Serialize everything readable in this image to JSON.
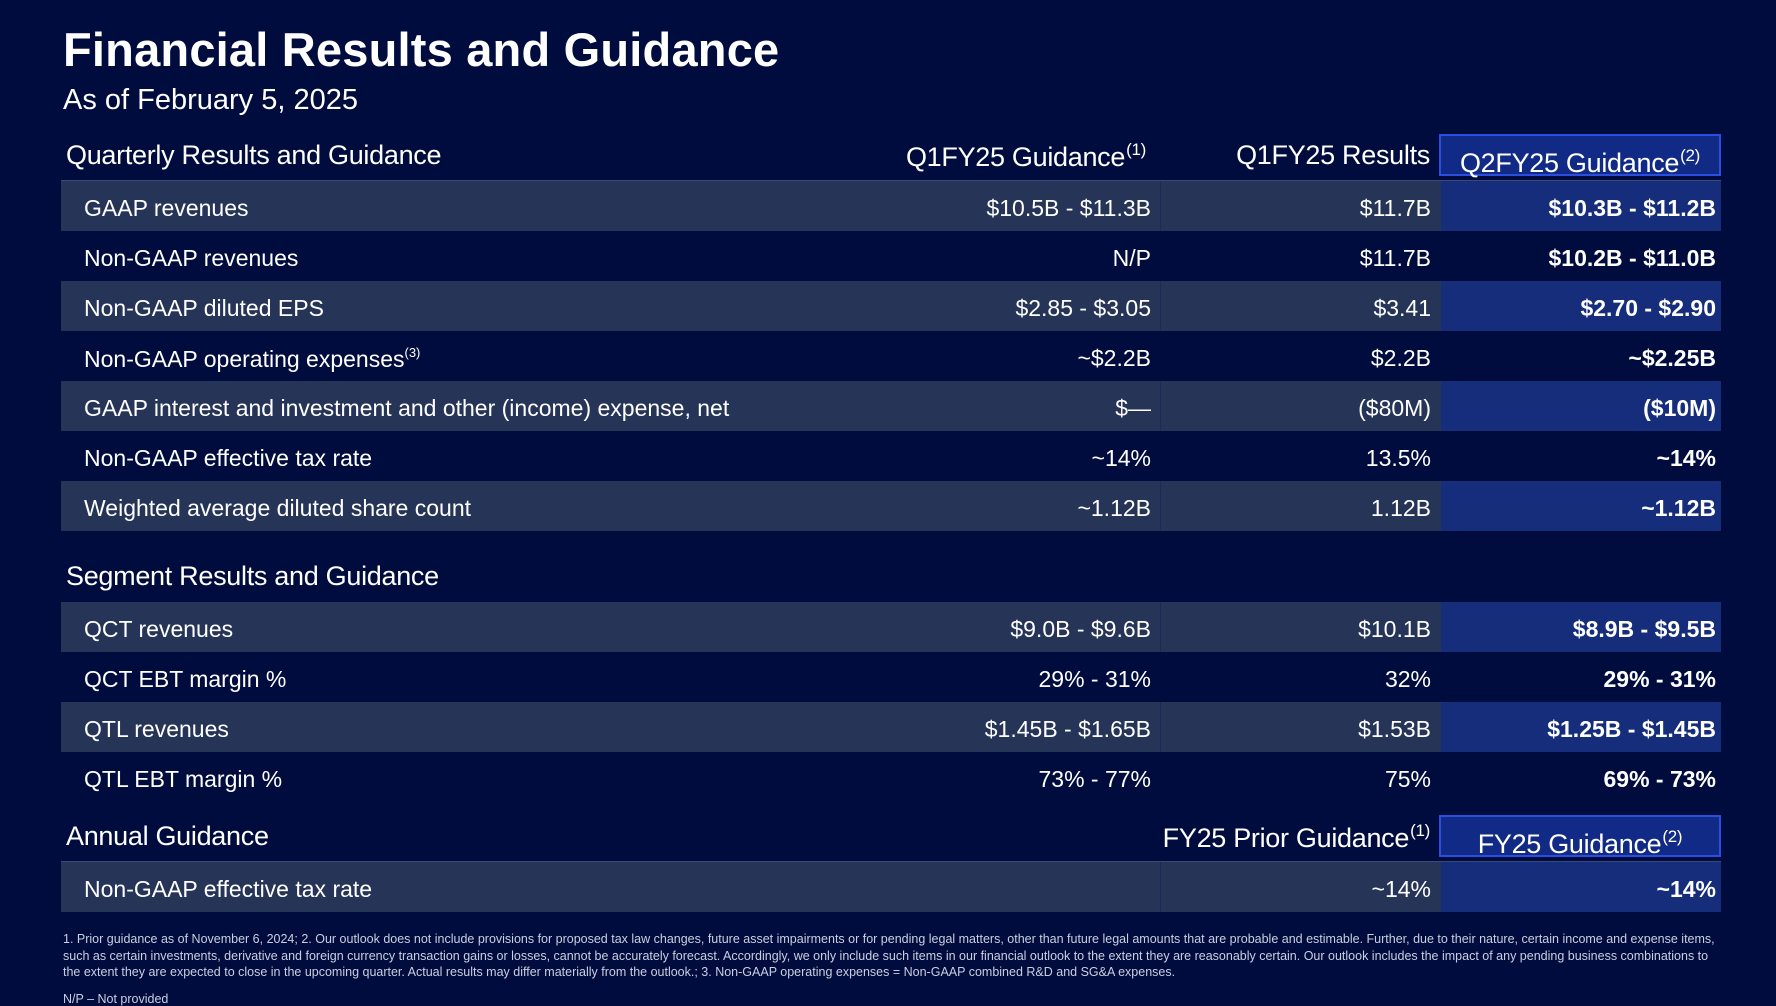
{
  "title": "Financial Results and Guidance",
  "subtitle": "As of February 5, 2025",
  "quarterly": {
    "heading": "Quarterly Results and Guidance",
    "col1": "Q1FY25 Guidance",
    "col1_sup": "(1)",
    "col2": "Q1FY25 Results",
    "col3": "Q2FY25 Guidance",
    "col3_sup": "(2)",
    "rows": [
      {
        "label": "GAAP revenues",
        "c1": "$10.5B - $11.3B",
        "c2": "$11.7B",
        "c3": "$10.3B - $11.2B"
      },
      {
        "label": "Non-GAAP revenues",
        "c1": "N/P",
        "c2": "$11.7B",
        "c3": "$10.2B - $11.0B"
      },
      {
        "label": "Non-GAAP diluted EPS",
        "c1": "$2.85 - $3.05",
        "c2": "$3.41",
        "c3": "$2.70 - $2.90"
      },
      {
        "label": "Non-GAAP operating expenses",
        "label_sup": "(3)",
        "c1": "~$2.2B",
        "c2": "$2.2B",
        "c3": "~$2.25B"
      },
      {
        "label": "GAAP interest and investment and other (income) expense, net",
        "c1": "$—",
        "c2": "($80M)",
        "c3": "($10M)"
      },
      {
        "label": "Non-GAAP effective tax rate",
        "c1": "~14%",
        "c2": "13.5%",
        "c3": "~14%"
      },
      {
        "label": "Weighted average diluted share count",
        "c1": "~1.12B",
        "c2": "1.12B",
        "c3": "~1.12B"
      }
    ]
  },
  "segment": {
    "heading": "Segment Results and Guidance",
    "rows": [
      {
        "label": "QCT revenues",
        "c1": "$9.0B - $9.6B",
        "c2": "$10.1B",
        "c3": "$8.9B - $9.5B"
      },
      {
        "label": "QCT EBT margin %",
        "c1": "29% - 31%",
        "c2": "32%",
        "c3": "29% - 31%"
      },
      {
        "label": "QTL revenues",
        "c1": "$1.45B - $1.65B",
        "c2": "$1.53B",
        "c3": "$1.25B - $1.45B"
      },
      {
        "label": "QTL EBT margin %",
        "c1": "73% - 77%",
        "c2": "75%",
        "c3": "69% - 73%"
      }
    ]
  },
  "annual": {
    "heading": "Annual Guidance",
    "col2": "FY25 Prior Guidance",
    "col2_sup": "(1)",
    "col3": "FY25 Guidance",
    "col3_sup": "(2)",
    "rows": [
      {
        "label": "Non-GAAP effective tax rate",
        "c2": "~14%",
        "c3": "~14%"
      }
    ]
  },
  "footnote": "1. Prior guidance as of November 6, 2024; 2. Our outlook does not include provisions for proposed tax law changes, future asset impairments or for pending legal matters, other than future legal amounts that are probable and estimable. Further, due to their nature, certain income and expense items, such as certain investments, derivative and foreign currency transaction gains or losses, cannot be accurately forecast. Accordingly, we only include such items in our financial outlook to the extent they are reasonably certain. Our outlook includes the impact of any pending business combinations to the extent they are expected to close in the upcoming quarter. Actual results may differ materially from the outlook.; 3. Non-GAAP operating expenses = Non-GAAP combined R&D and SG&A expenses.",
  "np_note": "N/P – Not provided"
}
